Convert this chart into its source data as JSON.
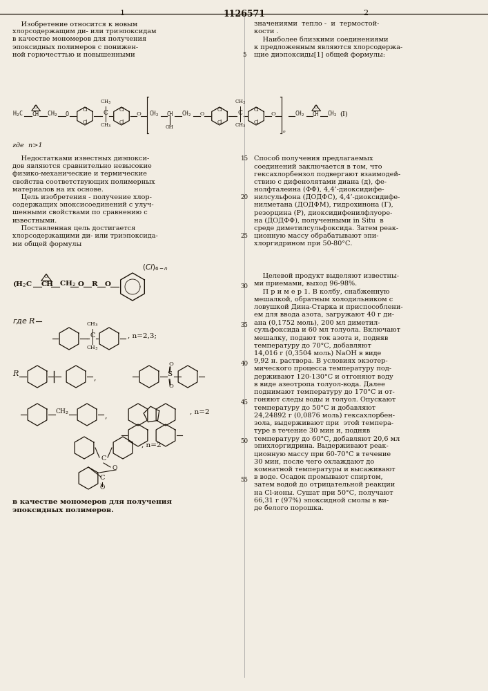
{
  "title": "1126571",
  "page_left": "1",
  "page_right": "2",
  "bg_color": "#f2ede3",
  "text_color": "#1a1208",
  "body_fs": 7.0,
  "small_fs": 6.2,
  "lc": 18,
  "rc": 368,
  "lh": 11.2,
  "lines_left1": [
    "    Изобретение относится к новым",
    "хлорсодержащим ди- или триэпоксидам",
    "в качестве мономеров для получения",
    "эпоксидных полимеров с понижен-",
    "ной горючесттью и повышенными"
  ],
  "lines_right1": [
    "значениями  тепло -  и  термостой-",
    "кости .",
    "    Наиболее близкими соединениями",
    "к предложенным являются хлорсодержа-",
    "щие диэпоксиды[1] общей формулы:"
  ],
  "lines_left2": [
    "    Недостатками известных диэпокси-",
    "дов являются сравнительно невысокие",
    "физико-механические и термические",
    "свойства соответствующих полимерных",
    "материалов на их основе.",
    "    Цель изобретения - получение хлор-",
    "содержащих эпоксисоединений с улуч-",
    "шенными свойствами по сравнению с",
    "известными.",
    "    Поставленная цель достигается",
    "хлорсодержащими ди- или триэпоксида-",
    "ми общей формулы"
  ],
  "lines_right2": [
    "Способ получения предлагаемых",
    "соединений заключается в том, что",
    "гексахлорбензол подвергают взаимодей-",
    "ствию с дифенолятами диана (д), фе-",
    "нолфталеина (ФФ), 4,4’-диоксидифе-",
    "нилсульфона (ДОДФС), 4,4’-диоксидифе-",
    "нилметана (ДОДФМ), гидрохинона (Г),",
    "резорцина (Р), диоксидифенилфлуоре-",
    "на (ДОДФФ), полученными in Situ  в",
    "среде диметилсульфоксида. Затем реак-",
    "ционную массу обрабатывают эпи-",
    "хлоргидрином при 50-80°С."
  ],
  "lines_right3": [
    "    Целевой продукт выделяют известны-",
    "ми приемами, выход 96-98%.",
    "    П р и м е р 1. В колбу, снабженную",
    "мешалкой, обратным холодильником с",
    "ловушкой Дина-Старка и приспособлени-",
    "ем для ввода азота, загружают 40 г ди-",
    "ана (0,1752 моль), 200 мл диметил-",
    "сульфоксида и 60 мл толуола. Включают",
    "мешалку, подают ток азота и, подняв",
    "температуру до 70°С, добавляют",
    "14,016 г (0,3504 моль) NaOH в виде",
    "9,92 н. раствора. В условиях экзотер-",
    "мического процесса температуру под-",
    "держивают 120-130°С и отгоняют воду",
    "в виде азеотропа толуол-вода. Далее",
    "поднимают температуру до 170°С и от-",
    "гоняют следы воды и толуол. Опускают",
    "температуру до 50°С и добавляют",
    "24,24892 г (0,0876 моль) гексахлорбен-",
    "зола, выдерживают при  этой темпера-",
    "туре в течение 30 мин и, подняв",
    "температуру до 60°С, добавляют 20,6 мл",
    "эпихлоргидрина. Выдерживают реак-",
    "ционную массу при 60-70°С в течение",
    "30 мин, после чего охлаждают до",
    "комнатной температуры и высаживают",
    "в воде. Осадок промывают спиртом,",
    "затем водой до отрицательной реакции",
    "на Cl-ионы. Сушат при 50°С, получают",
    "66,31 г (97%) эпоксидной смолы в ви-",
    "де белого порошка."
  ]
}
